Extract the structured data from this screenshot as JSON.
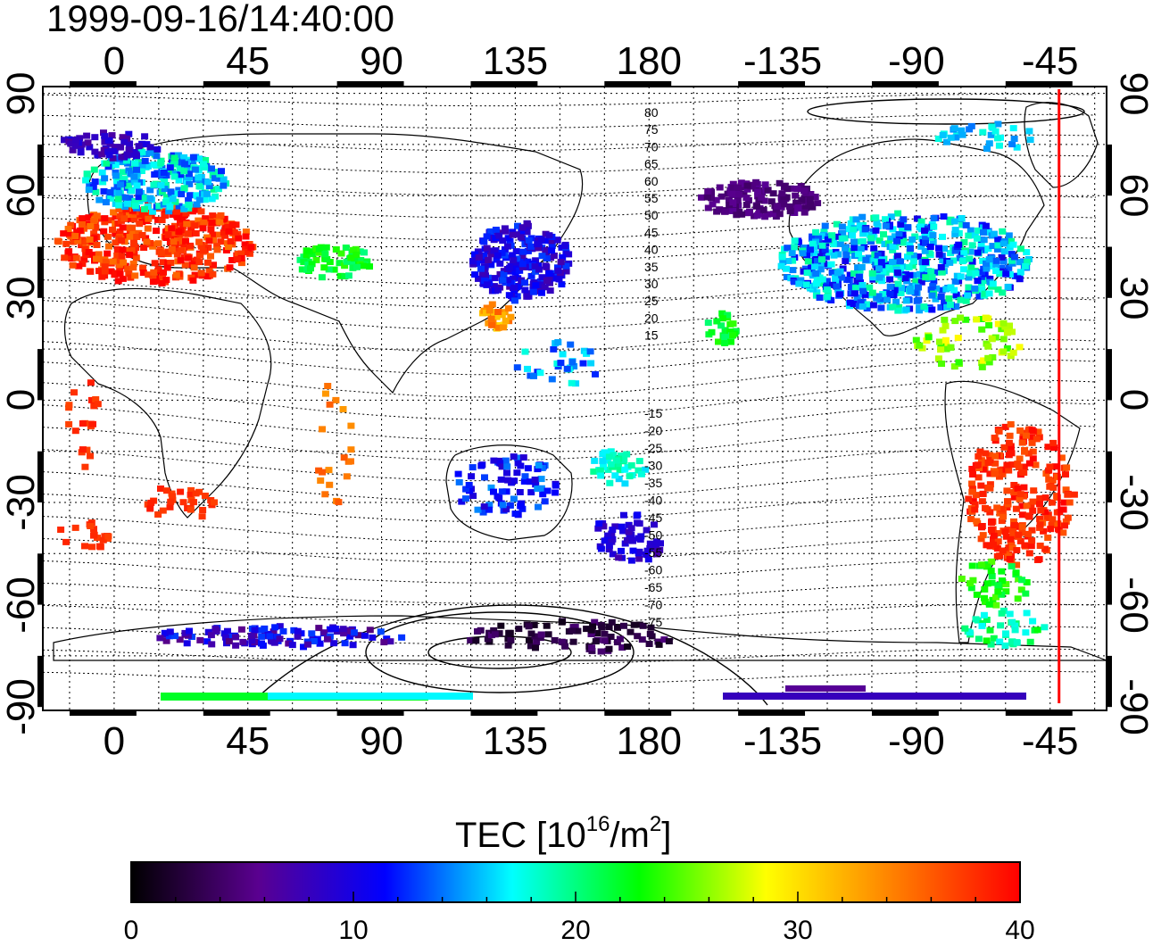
{
  "timestamp": "1999-09-16/14:40:00",
  "map": {
    "lon_labels": [
      "0",
      "45",
      "90",
      "135",
      "180",
      "-135",
      "-90",
      "-45"
    ],
    "lon_label_values": [
      0,
      45,
      90,
      135,
      180,
      225,
      270,
      315
    ],
    "lat_left_labels": [
      "90",
      "60",
      "30",
      "0",
      "-30",
      "-60",
      "-90"
    ],
    "lat_right_labels": [
      "90",
      "60",
      "30",
      "0",
      "-30",
      "-60",
      "-90"
    ],
    "lat_label_values": [
      90,
      60,
      30,
      0,
      -30,
      -60,
      -90
    ],
    "lon_range": [
      -24,
      334
    ],
    "lat_range": [
      -91,
      92
    ],
    "terminator_lon": 318,
    "terminator_color": "#ff0000",
    "contour_labels_north": [
      "80",
      "75",
      "70",
      "65",
      "60",
      "55",
      "50",
      "45",
      "40",
      "35",
      "30",
      "25",
      "20",
      "15"
    ],
    "contour_labels_south": [
      "-15",
      "-20",
      "-25",
      "-30",
      "-35",
      "-40",
      "-45",
      "-50",
      "-55",
      "-60",
      "-65",
      "-70",
      "-75"
    ]
  },
  "colorbar": {
    "title": "TEC  [10",
    "title_sup1": "16",
    "title_mid": "/m",
    "title_sup2": "2",
    "title_end": "]",
    "tick_labels": [
      "0",
      "10",
      "20",
      "30",
      "40"
    ],
    "tick_values": [
      0,
      10,
      20,
      30,
      40
    ],
    "range": [
      0,
      40
    ],
    "colors": [
      "#000000",
      "#5a0090",
      "#0000ff",
      "#00ffff",
      "#00ff00",
      "#ffff00",
      "#ff8000",
      "#ff0000"
    ]
  }
}
